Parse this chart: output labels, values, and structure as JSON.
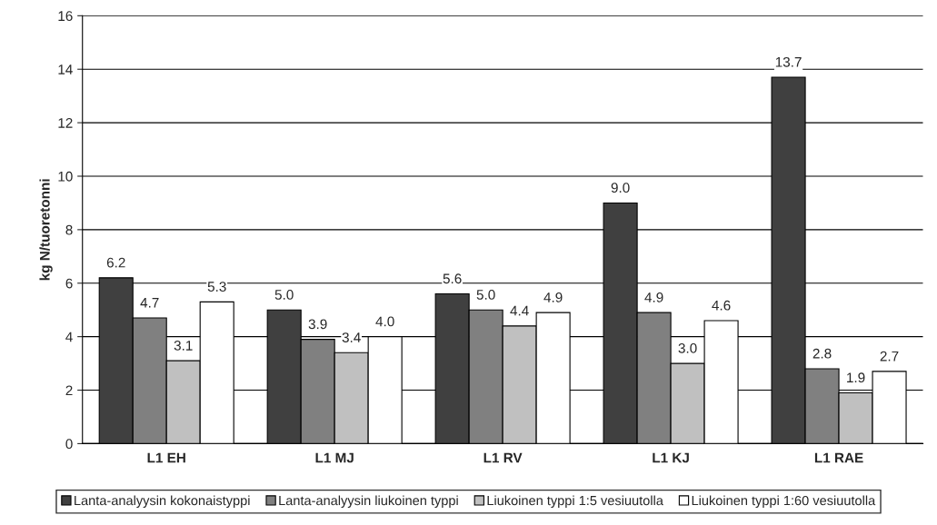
{
  "chart_data": {
    "type": "bar",
    "ylabel": "kg N/tuoretonni",
    "categories": [
      "L1 EH",
      "L1 MJ",
      "L1 RV",
      "L1 KJ",
      "L1 RAE"
    ],
    "series": [
      {
        "name": "Lanta-analyysin kokonaistyppi",
        "color": "#404040",
        "values": [
          6.2,
          5.0,
          5.6,
          9.0,
          13.7
        ],
        "value_labels": [
          "6.2",
          "5.0",
          "5.6",
          "9.0",
          "13.7"
        ]
      },
      {
        "name": "Lanta-analyysin liukoinen typpi",
        "color": "#808080",
        "values": [
          4.7,
          3.9,
          5.0,
          4.9,
          2.8
        ],
        "value_labels": [
          "4.7",
          "3.9",
          "5.0",
          "4.9",
          "2.8"
        ]
      },
      {
        "name": "Liukoinen typpi 1:5 vesiuutolla",
        "color": "#c0c0c0",
        "values": [
          3.1,
          3.4,
          4.4,
          3.0,
          1.9
        ],
        "value_labels": [
          "3.1",
          "3.4",
          "4.4",
          "3.0",
          "1.9"
        ]
      },
      {
        "name": "Liukoinen typpi 1:60 vesiuutolla",
        "color": "#ffffff",
        "values": [
          5.3,
          4.0,
          4.9,
          4.6,
          2.7
        ],
        "value_labels": [
          "5.3",
          "4.0",
          "4.9",
          "4.6",
          "2.7"
        ]
      }
    ],
    "ylim": [
      0,
      16
    ],
    "yticks": [
      0,
      2,
      4,
      6,
      8,
      10,
      12,
      14,
      16
    ],
    "grid": "y",
    "legend": "bottom"
  }
}
